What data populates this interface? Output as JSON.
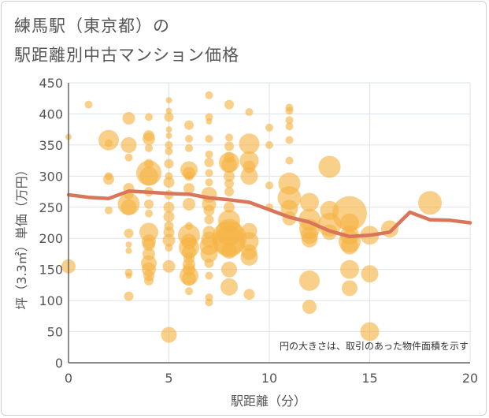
{
  "title_line1": "練馬駅（東京都）の",
  "title_line2": "駅距離別中古マンション価格",
  "colors": {
    "bubble": "#f5b342",
    "line": "#d9755a",
    "grid": "#dde3ea",
    "text": "#555555"
  },
  "chart_data": {
    "type": "scatter",
    "title": "練馬駅（東京都）の 駅距離別中古マンション価格",
    "xlabel": "駅距離（分）",
    "ylabel": "坪（3.3㎡）単価（万円）",
    "xlim": [
      0,
      20
    ],
    "ylim": [
      0,
      450
    ],
    "xticks": [
      0,
      5,
      10,
      15,
      20
    ],
    "yticks": [
      0,
      50,
      100,
      150,
      200,
      250,
      300,
      350,
      400,
      450
    ],
    "grid": true,
    "note": "円の大きさは、取引のあった物件面積を示す",
    "points": [
      {
        "x": 0,
        "y": 363,
        "s": 4
      },
      {
        "x": 0,
        "y": 155,
        "s": 9
      },
      {
        "x": 1,
        "y": 415,
        "s": 5
      },
      {
        "x": 2,
        "y": 358,
        "s": 13
      },
      {
        "x": 2,
        "y": 353,
        "s": 5
      },
      {
        "x": 2,
        "y": 300,
        "s": 5
      },
      {
        "x": 2,
        "y": 295,
        "s": 7
      },
      {
        "x": 2,
        "y": 245,
        "s": 5
      },
      {
        "x": 3,
        "y": 393,
        "s": 8
      },
      {
        "x": 3,
        "y": 350,
        "s": 10
      },
      {
        "x": 3,
        "y": 330,
        "s": 5
      },
      {
        "x": 3,
        "y": 280,
        "s": 7
      },
      {
        "x": 3,
        "y": 270,
        "s": 6
      },
      {
        "x": 3,
        "y": 255,
        "s": 14
      },
      {
        "x": 3,
        "y": 250,
        "s": 10
      },
      {
        "x": 3,
        "y": 208,
        "s": 6
      },
      {
        "x": 3,
        "y": 190,
        "s": 4
      },
      {
        "x": 3,
        "y": 180,
        "s": 4
      },
      {
        "x": 3,
        "y": 145,
        "s": 5
      },
      {
        "x": 3,
        "y": 140,
        "s": 4
      },
      {
        "x": 3,
        "y": 107,
        "s": 6
      },
      {
        "x": 4,
        "y": 395,
        "s": 5
      },
      {
        "x": 4,
        "y": 365,
        "s": 7
      },
      {
        "x": 4,
        "y": 360,
        "s": 8
      },
      {
        "x": 4,
        "y": 345,
        "s": 5
      },
      {
        "x": 4,
        "y": 320,
        "s": 6
      },
      {
        "x": 4,
        "y": 305,
        "s": 16
      },
      {
        "x": 4,
        "y": 300,
        "s": 12
      },
      {
        "x": 4,
        "y": 275,
        "s": 6
      },
      {
        "x": 4,
        "y": 255,
        "s": 6
      },
      {
        "x": 4,
        "y": 240,
        "s": 5
      },
      {
        "x": 4,
        "y": 210,
        "s": 12
      },
      {
        "x": 4,
        "y": 195,
        "s": 9
      },
      {
        "x": 4,
        "y": 190,
        "s": 8
      },
      {
        "x": 4,
        "y": 175,
        "s": 8
      },
      {
        "x": 4,
        "y": 160,
        "s": 10
      },
      {
        "x": 4,
        "y": 150,
        "s": 9
      },
      {
        "x": 4,
        "y": 140,
        "s": 7
      },
      {
        "x": 4,
        "y": 132,
        "s": 6
      },
      {
        "x": 5,
        "y": 422,
        "s": 4
      },
      {
        "x": 5,
        "y": 405,
        "s": 4
      },
      {
        "x": 5,
        "y": 395,
        "s": 6
      },
      {
        "x": 5,
        "y": 375,
        "s": 4
      },
      {
        "x": 5,
        "y": 365,
        "s": 4
      },
      {
        "x": 5,
        "y": 350,
        "s": 5
      },
      {
        "x": 5,
        "y": 340,
        "s": 5
      },
      {
        "x": 5,
        "y": 320,
        "s": 6
      },
      {
        "x": 5,
        "y": 300,
        "s": 5
      },
      {
        "x": 5,
        "y": 290,
        "s": 7
      },
      {
        "x": 5,
        "y": 270,
        "s": 6
      },
      {
        "x": 5,
        "y": 250,
        "s": 7
      },
      {
        "x": 5,
        "y": 235,
        "s": 7
      },
      {
        "x": 5,
        "y": 220,
        "s": 6
      },
      {
        "x": 5,
        "y": 210,
        "s": 7
      },
      {
        "x": 5,
        "y": 197,
        "s": 8
      },
      {
        "x": 5,
        "y": 185,
        "s": 5
      },
      {
        "x": 5,
        "y": 155,
        "s": 8
      },
      {
        "x": 5,
        "y": 45,
        "s": 10
      },
      {
        "x": 6,
        "y": 382,
        "s": 6
      },
      {
        "x": 6,
        "y": 360,
        "s": 5
      },
      {
        "x": 6,
        "y": 345,
        "s": 5
      },
      {
        "x": 6,
        "y": 310,
        "s": 11
      },
      {
        "x": 6,
        "y": 305,
        "s": 8
      },
      {
        "x": 6,
        "y": 300,
        "s": 6
      },
      {
        "x": 6,
        "y": 280,
        "s": 7
      },
      {
        "x": 6,
        "y": 255,
        "s": 8
      },
      {
        "x": 6,
        "y": 220,
        "s": 5
      },
      {
        "x": 6,
        "y": 205,
        "s": 14
      },
      {
        "x": 6,
        "y": 195,
        "s": 10
      },
      {
        "x": 6,
        "y": 185,
        "s": 13
      },
      {
        "x": 6,
        "y": 178,
        "s": 9
      },
      {
        "x": 6,
        "y": 168,
        "s": 7
      },
      {
        "x": 6,
        "y": 158,
        "s": 8
      },
      {
        "x": 6,
        "y": 150,
        "s": 8
      },
      {
        "x": 6,
        "y": 140,
        "s": 12
      },
      {
        "x": 6,
        "y": 135,
        "s": 9
      },
      {
        "x": 6,
        "y": 115,
        "s": 5
      },
      {
        "x": 7,
        "y": 430,
        "s": 5
      },
      {
        "x": 7,
        "y": 395,
        "s": 5
      },
      {
        "x": 7,
        "y": 388,
        "s": 4
      },
      {
        "x": 7,
        "y": 360,
        "s": 5
      },
      {
        "x": 7,
        "y": 335,
        "s": 5
      },
      {
        "x": 7,
        "y": 322,
        "s": 6
      },
      {
        "x": 7,
        "y": 305,
        "s": 5
      },
      {
        "x": 7,
        "y": 290,
        "s": 5
      },
      {
        "x": 7,
        "y": 270,
        "s": 10
      },
      {
        "x": 7,
        "y": 255,
        "s": 9
      },
      {
        "x": 7,
        "y": 245,
        "s": 7
      },
      {
        "x": 7,
        "y": 230,
        "s": 6
      },
      {
        "x": 7,
        "y": 210,
        "s": 8
      },
      {
        "x": 7,
        "y": 198,
        "s": 10
      },
      {
        "x": 7,
        "y": 188,
        "s": 12
      },
      {
        "x": 7,
        "y": 175,
        "s": 11
      },
      {
        "x": 7,
        "y": 160,
        "s": 6
      },
      {
        "x": 7,
        "y": 140,
        "s": 5
      },
      {
        "x": 7,
        "y": 105,
        "s": 5
      },
      {
        "x": 7,
        "y": 97,
        "s": 5
      },
      {
        "x": 8,
        "y": 415,
        "s": 6
      },
      {
        "x": 8,
        "y": 362,
        "s": 5
      },
      {
        "x": 8,
        "y": 348,
        "s": 6
      },
      {
        "x": 8,
        "y": 330,
        "s": 7
      },
      {
        "x": 8,
        "y": 322,
        "s": 13
      },
      {
        "x": 8,
        "y": 318,
        "s": 10
      },
      {
        "x": 8,
        "y": 300,
        "s": 7
      },
      {
        "x": 8,
        "y": 288,
        "s": 6
      },
      {
        "x": 8,
        "y": 275,
        "s": 6
      },
      {
        "x": 8,
        "y": 250,
        "s": 7
      },
      {
        "x": 8,
        "y": 228,
        "s": 14
      },
      {
        "x": 8,
        "y": 210,
        "s": 17
      },
      {
        "x": 8,
        "y": 200,
        "s": 22
      },
      {
        "x": 8,
        "y": 195,
        "s": 20
      },
      {
        "x": 8,
        "y": 180,
        "s": 10
      },
      {
        "x": 8,
        "y": 150,
        "s": 10
      },
      {
        "x": 8,
        "y": 122,
        "s": 11
      },
      {
        "x": 9,
        "y": 403,
        "s": 5
      },
      {
        "x": 9,
        "y": 352,
        "s": 13
      },
      {
        "x": 9,
        "y": 325,
        "s": 12
      },
      {
        "x": 9,
        "y": 315,
        "s": 8
      },
      {
        "x": 9,
        "y": 300,
        "s": 11
      },
      {
        "x": 9,
        "y": 212,
        "s": 10
      },
      {
        "x": 9,
        "y": 195,
        "s": 12
      },
      {
        "x": 9,
        "y": 178,
        "s": 10
      },
      {
        "x": 9,
        "y": 170,
        "s": 11
      },
      {
        "x": 9,
        "y": 110,
        "s": 7
      },
      {
        "x": 10,
        "y": 378,
        "s": 5
      },
      {
        "x": 10,
        "y": 350,
        "s": 5
      },
      {
        "x": 10,
        "y": 285,
        "s": 5
      },
      {
        "x": 10,
        "y": 250,
        "s": 5
      },
      {
        "x": 11,
        "y": 410,
        "s": 5
      },
      {
        "x": 11,
        "y": 405,
        "s": 5
      },
      {
        "x": 11,
        "y": 390,
        "s": 5
      },
      {
        "x": 11,
        "y": 380,
        "s": 5
      },
      {
        "x": 11,
        "y": 358,
        "s": 5
      },
      {
        "x": 11,
        "y": 325,
        "s": 5
      },
      {
        "x": 11,
        "y": 288,
        "s": 14
      },
      {
        "x": 11,
        "y": 265,
        "s": 15
      },
      {
        "x": 11,
        "y": 248,
        "s": 11
      },
      {
        "x": 11,
        "y": 232,
        "s": 9
      },
      {
        "x": 12,
        "y": 258,
        "s": 12
      },
      {
        "x": 12,
        "y": 230,
        "s": 14
      },
      {
        "x": 12,
        "y": 215,
        "s": 13
      },
      {
        "x": 12,
        "y": 205,
        "s": 11
      },
      {
        "x": 12,
        "y": 198,
        "s": 10
      },
      {
        "x": 12,
        "y": 132,
        "s": 13
      },
      {
        "x": 12,
        "y": 90,
        "s": 9
      },
      {
        "x": 13,
        "y": 315,
        "s": 14
      },
      {
        "x": 13,
        "y": 245,
        "s": 12
      },
      {
        "x": 13,
        "y": 222,
        "s": 15
      },
      {
        "x": 13,
        "y": 210,
        "s": 10
      },
      {
        "x": 14,
        "y": 240,
        "s": 22
      },
      {
        "x": 14,
        "y": 225,
        "s": 12
      },
      {
        "x": 14,
        "y": 205,
        "s": 12
      },
      {
        "x": 14,
        "y": 195,
        "s": 14
      },
      {
        "x": 14,
        "y": 188,
        "s": 11
      },
      {
        "x": 14,
        "y": 150,
        "s": 12
      },
      {
        "x": 14,
        "y": 120,
        "s": 10
      },
      {
        "x": 15,
        "y": 205,
        "s": 12
      },
      {
        "x": 15,
        "y": 143,
        "s": 11
      },
      {
        "x": 15,
        "y": 50,
        "s": 12
      },
      {
        "x": 16,
        "y": 215,
        "s": 11
      },
      {
        "x": 18,
        "y": 257,
        "s": 15
      }
    ],
    "series": [
      {
        "type": "line",
        "x": [
          0,
          1,
          2,
          3,
          4,
          5,
          6,
          7,
          8,
          9,
          10,
          11,
          12,
          13,
          14,
          15,
          16,
          17,
          18,
          19,
          20
        ],
        "values": [
          270,
          266,
          264,
          276,
          274,
          272,
          271,
          265,
          262,
          258,
          246,
          234,
          226,
          212,
          203,
          205,
          210,
          242,
          230,
          229,
          225
        ]
      }
    ]
  }
}
